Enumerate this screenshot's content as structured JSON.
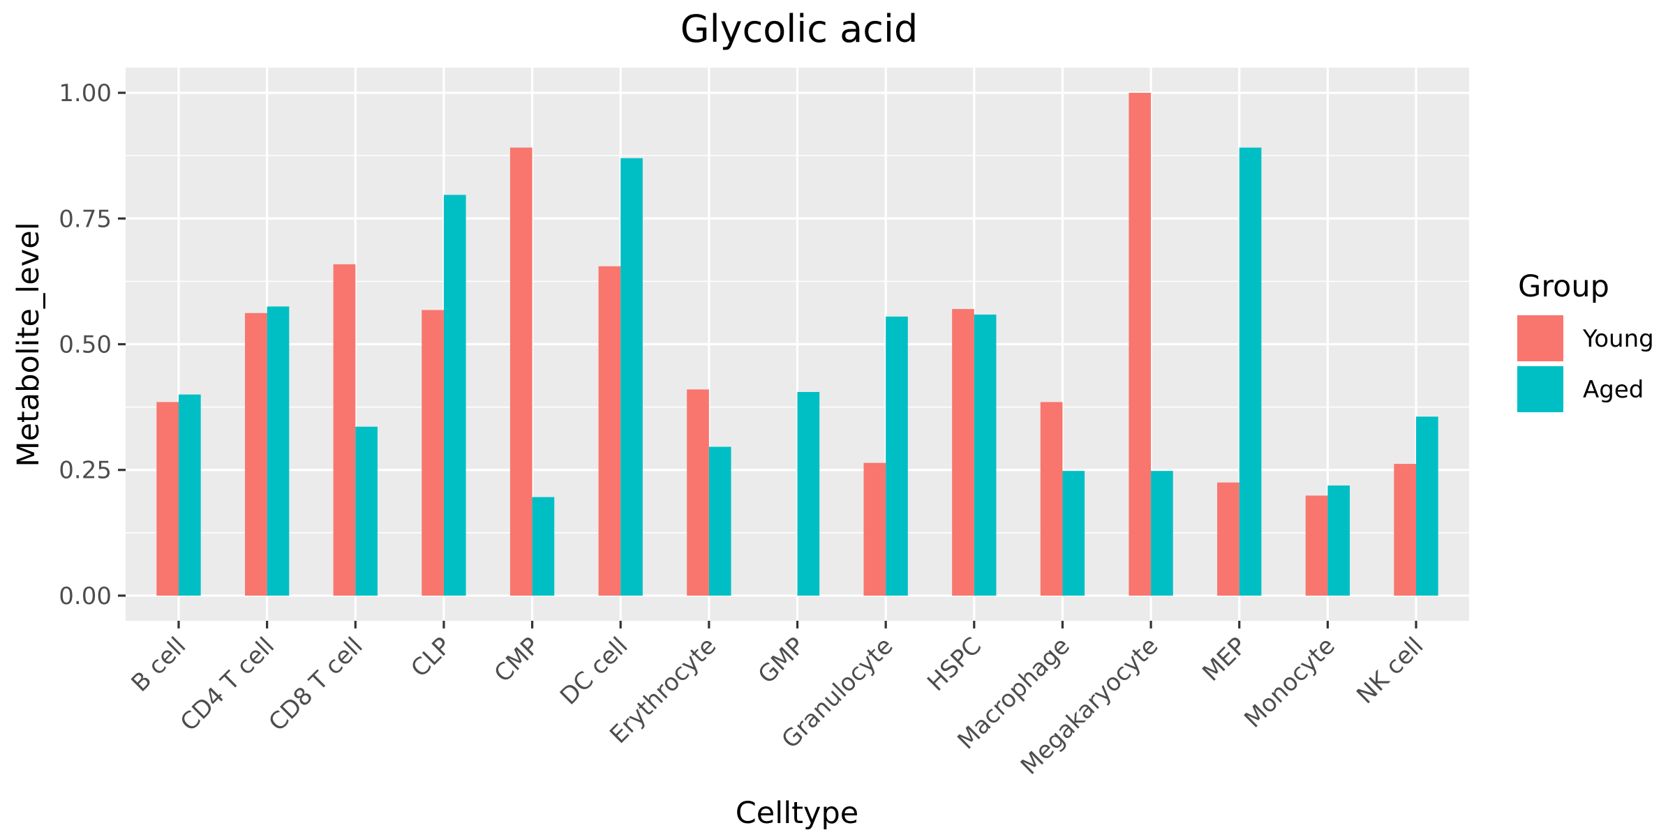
{
  "chart_data": {
    "type": "bar",
    "title": "Glycolic acid",
    "xlabel": "Celltype",
    "ylabel": "Metabolite_level",
    "ylim": [
      -0.05,
      1.05
    ],
    "yticks": [
      0.0,
      0.25,
      0.5,
      0.75,
      1.0
    ],
    "ytick_labels": [
      "0.00",
      "0.25",
      "0.50",
      "0.75",
      "1.00"
    ],
    "grid": true,
    "legend": {
      "title": "Group",
      "placement": "right"
    },
    "categories": [
      "B cell",
      "CD4 T cell",
      "CD8 T cell",
      "CLP",
      "CMP",
      "DC cell",
      "Erythrocyte",
      "GMP",
      "Granulocyte",
      "HSPC",
      "Macrophage",
      "Megakaryocyte",
      "MEP",
      "Monocyte",
      "NK cell"
    ],
    "series": [
      {
        "name": "Young",
        "color": "#F8766D",
        "values": [
          0.385,
          0.562,
          0.659,
          0.568,
          0.891,
          0.655,
          0.41,
          0.0,
          0.264,
          0.57,
          0.385,
          1.0,
          0.225,
          0.199,
          0.262
        ]
      },
      {
        "name": "Aged",
        "color": "#00BFC4",
        "values": [
          0.4,
          0.575,
          0.336,
          0.797,
          0.196,
          0.87,
          0.296,
          0.405,
          0.555,
          0.559,
          0.248,
          0.248,
          0.891,
          0.219,
          0.356
        ]
      }
    ]
  }
}
